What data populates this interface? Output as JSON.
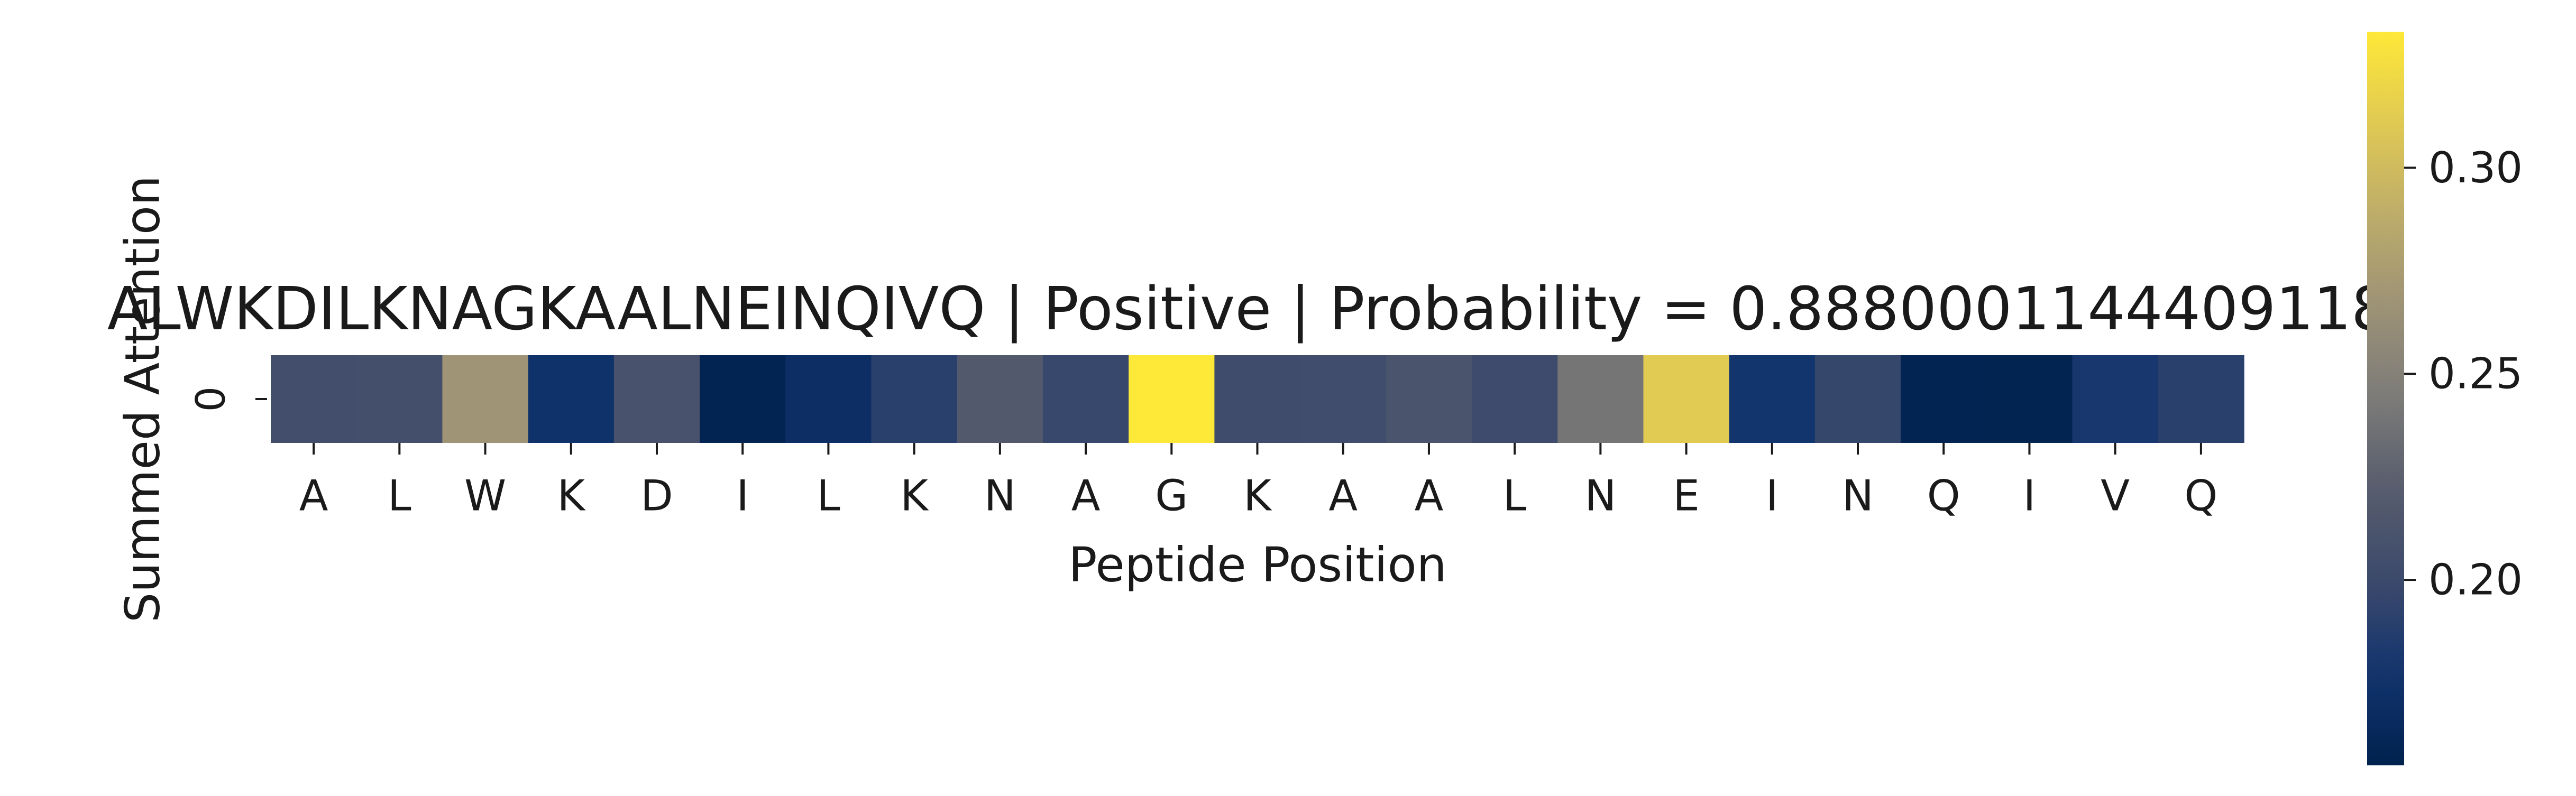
{
  "chart_data": {
    "type": "heatmap",
    "title": "ALWKDILKNAGKAALNEINQIVQ | Positive | Probability = 0.8880001144409118",
    "xlabel": "Peptide Position",
    "ylabel": "Summed Attention",
    "row_labels": [
      "0"
    ],
    "categories": [
      "A",
      "L",
      "W",
      "K",
      "D",
      "I",
      "L",
      "K",
      "N",
      "A",
      "G",
      "K",
      "A",
      "A",
      "L",
      "N",
      "E",
      "I",
      "N",
      "Q",
      "I",
      "V",
      "Q"
    ],
    "values": [
      0.205,
      0.207,
      0.268,
      0.175,
      0.21,
      0.158,
      0.17,
      0.19,
      0.218,
      0.198,
      0.333,
      0.203,
      0.204,
      0.212,
      0.202,
      0.24,
      0.312,
      0.178,
      0.197,
      0.158,
      0.157,
      0.18,
      0.19
    ],
    "colormap": "cividis",
    "colorbar": {
      "min": 0.155,
      "max": 0.333,
      "ticks": [
        0.2,
        0.25,
        0.3
      ],
      "tick_labels": [
        "0.20",
        "0.25",
        "0.30"
      ]
    }
  }
}
